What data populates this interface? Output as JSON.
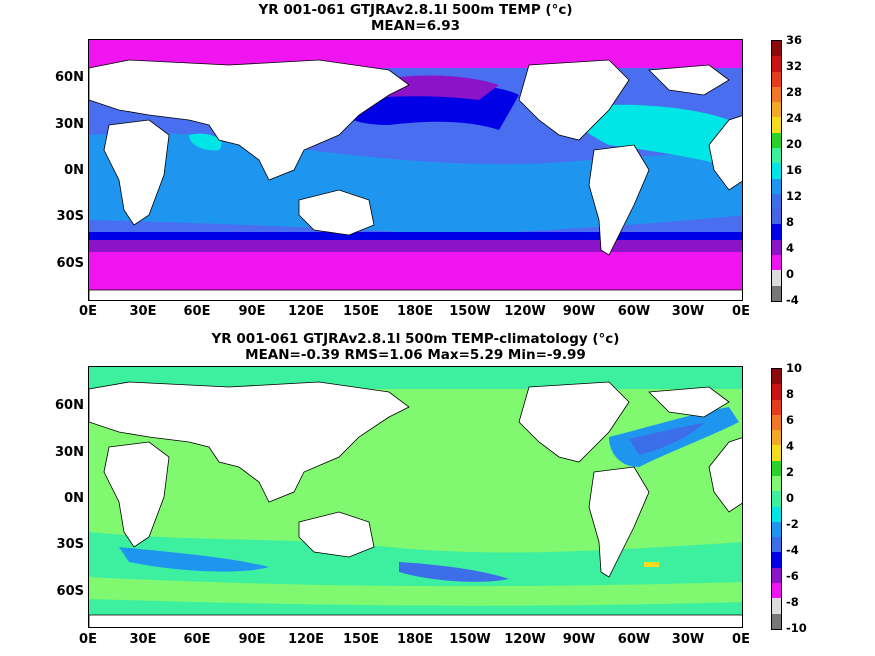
{
  "panels": [
    {
      "title_line1": "YR 001-061 GTJRAv2.8.1l 500m TEMP (°c)",
      "title_line2": "MEAN=6.93",
      "colorbar": {
        "labels": [
          "36",
          "32",
          "28",
          "24",
          "20",
          "16",
          "12",
          "8",
          "4",
          "0",
          "-4"
        ],
        "colors_top_to_bottom": [
          "#8c0a0a",
          "#c81414",
          "#e63c1e",
          "#f07828",
          "#f0aa28",
          "#f5dc1e",
          "#28d228",
          "#3cf0a0",
          "#00e6e6",
          "#1e96f0",
          "#3c6eea",
          "#4664e6",
          "#0000e6",
          "#8c14c8",
          "#f014f0",
          "#dcdcdc",
          "#787878"
        ]
      },
      "ocean_color_main": "#4a6ef0"
    },
    {
      "title_line1": "YR 001-061 GTJRAv2.8.1l 500m TEMP-climatology (°c)",
      "title_line2": "MEAN=-0.39   RMS=1.06   Max=5.29   Min=-9.99",
      "colorbar": {
        "labels": [
          "10",
          "8",
          "6",
          "4",
          "2",
          "0",
          "-2",
          "-4",
          "-6",
          "-8",
          "-10"
        ],
        "colors_top_to_bottom": [
          "#8c0a0a",
          "#c81414",
          "#e63c1e",
          "#f07828",
          "#f0aa28",
          "#f5dc1e",
          "#28d228",
          "#80f870",
          "#3cf0a0",
          "#00e6e6",
          "#1e96f0",
          "#3c6eea",
          "#0000e6",
          "#8c14c8",
          "#f014f0",
          "#dcdcdc",
          "#787878"
        ]
      },
      "ocean_color_main": "#80f870"
    }
  ],
  "x_tick_labels": [
    "0E",
    "30E",
    "60E",
    "90E",
    "120E",
    "150E",
    "180E",
    "150W",
    "120W",
    "90W",
    "60W",
    "30W",
    "0E"
  ],
  "y_tick_labels": [
    "60N",
    "30N",
    "0N",
    "30S",
    "60S"
  ]
}
